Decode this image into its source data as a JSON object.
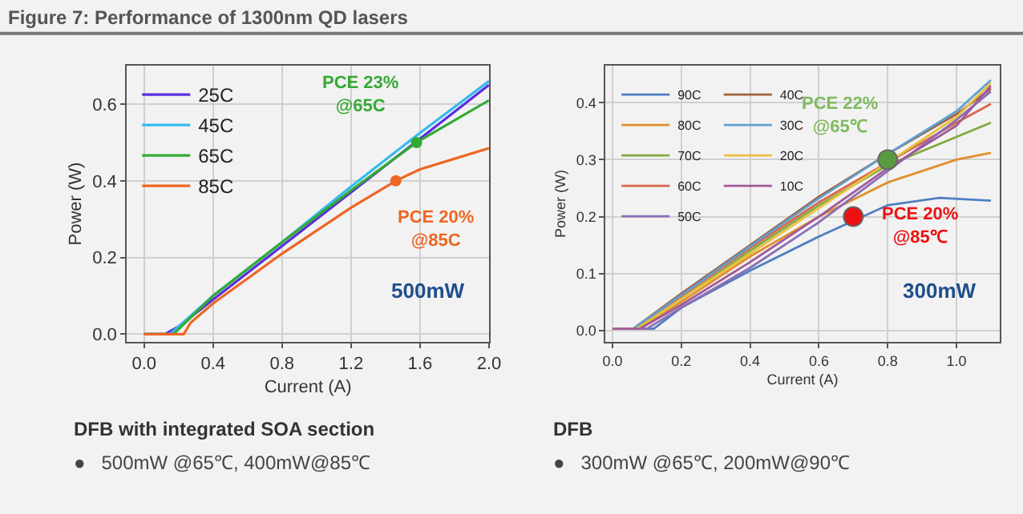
{
  "chart_data": [
    {
      "type": "line",
      "title": "Figure 7: Performance of 1300nm QD lasers",
      "xlabel": "Current (A)",
      "ylabel": "Power (W)",
      "xlim": [
        -0.1,
        2.0
      ],
      "xticks": [
        {
          "value": 0,
          "label": "0.0"
        },
        0.4,
        0.8,
        1.2,
        1.6,
        {
          "value": 2,
          "label": "2.0"
        }
      ],
      "ylim": [
        -0.02,
        0.7
      ],
      "yticks": [
        {
          "value": 0,
          "label": "0.0"
        },
        0.2,
        0.4,
        0.6
      ],
      "grid": true,
      "legend": "top left",
      "series": [
        {
          "name": "25C",
          "color": "#5a2de0",
          "x": [
            0,
            0.12,
            0.2,
            0.4,
            0.8,
            1.2,
            1.6,
            2.0
          ],
          "values": [
            0,
            0,
            0.02,
            0.09,
            0.23,
            0.37,
            0.51,
            0.65
          ]
        },
        {
          "name": "45C",
          "color": "#33bbee",
          "x": [
            0,
            0.15,
            0.4,
            0.8,
            1.2,
            1.6,
            2.0
          ],
          "values": [
            0,
            0,
            0.1,
            0.24,
            0.385,
            0.525,
            0.66
          ]
        },
        {
          "name": "65C",
          "color": "#33aa33",
          "x": [
            0,
            0.17,
            0.4,
            0.8,
            1.2,
            1.58,
            2.0
          ],
          "values": [
            0,
            0,
            0.1,
            0.24,
            0.375,
            0.5,
            0.61
          ]
        },
        {
          "name": "85C",
          "color": "#ee6622",
          "x": [
            0,
            0.23,
            0.27,
            0.4,
            0.8,
            1.2,
            1.46,
            1.6,
            2.0
          ],
          "values": [
            0,
            0,
            0.03,
            0.08,
            0.21,
            0.33,
            0.4,
            0.43,
            0.485
          ]
        },
        {
          "type": "scatter",
          "color": "#33aa33",
          "x": [
            1.58
          ],
          "values": [
            0.5
          ]
        },
        {
          "type": "scatter",
          "color": "#ee6622",
          "x": [
            1.46
          ],
          "values": [
            0.4
          ]
        }
      ],
      "annotations": [
        {
          "text": "PCE 23%\n@65C",
          "x": 1.58,
          "y": 0.5
        },
        {
          "text": "PCE 20%\n@85C",
          "x": 1.46,
          "y": 0.4
        },
        "500mW",
        "DFB with integrated SOA section",
        "●   500mW @65℃, 400mW@85℃"
      ]
    },
    {
      "type": "line",
      "xlabel": "Current (A)",
      "ylabel": "Power (W)",
      "xlim": [
        -0.02,
        1.125
      ],
      "xticks": [
        {
          "value": 0,
          "label": "0.0"
        },
        0.2,
        0.4,
        0.6,
        0.8,
        {
          "value": 1,
          "label": "1.0"
        }
      ],
      "ylim": [
        -0.02,
        0.465
      ],
      "yticks": [
        {
          "value": 0,
          "label": "0.0"
        },
        0.1,
        0.2,
        0.3,
        0.4
      ],
      "grid": true,
      "legend": "top left",
      "series": [
        {
          "name": "90C",
          "color": "#4f7fbf",
          "x": [
            0,
            0.12,
            0.2,
            0.4,
            0.6,
            0.8,
            0.95,
            1.1
          ],
          "values": [
            0.003,
            0.003,
            0.04,
            0.105,
            0.165,
            0.22,
            0.233,
            0.228
          ]
        },
        {
          "name": "80C",
          "color": "#e0902a",
          "x": [
            0,
            0.08,
            0.2,
            0.4,
            0.6,
            0.8,
            1.0,
            1.1
          ],
          "values": [
            0.003,
            0.003,
            0.05,
            0.13,
            0.2,
            0.26,
            0.3,
            0.312
          ]
        },
        {
          "name": "70C",
          "color": "#80aa40",
          "x": [
            0,
            0.07,
            0.2,
            0.4,
            0.6,
            0.8,
            1.0,
            1.1
          ],
          "values": [
            0.003,
            0.003,
            0.055,
            0.14,
            0.22,
            0.29,
            0.34,
            0.365
          ]
        },
        {
          "name": "60C",
          "color": "#d9664a",
          "x": [
            0,
            0.06,
            0.2,
            0.4,
            0.6,
            1.0,
            1.1
          ],
          "values": [
            0.003,
            0.003,
            0.06,
            0.145,
            0.225,
            0.365,
            0.398
          ]
        },
        {
          "name": "50C",
          "color": "#8a6fb5",
          "x": [
            0,
            0.1,
            0.2,
            0.4,
            0.6,
            0.8,
            1.0,
            1.1
          ],
          "values": [
            0.003,
            0.003,
            0.04,
            0.11,
            0.19,
            0.28,
            0.37,
            0.42
          ]
        },
        {
          "name": "40C",
          "color": "#a0603a",
          "x": [
            0,
            0.06,
            0.2,
            0.4,
            0.6,
            0.8,
            1.0,
            1.1
          ],
          "values": [
            0.003,
            0.003,
            0.065,
            0.15,
            0.235,
            0.31,
            0.38,
            0.425
          ]
        },
        {
          "name": "30C",
          "color": "#5fa0d0",
          "x": [
            0,
            0.06,
            0.2,
            0.4,
            0.6,
            0.8,
            1.0,
            1.1
          ],
          "values": [
            0.003,
            0.003,
            0.062,
            0.148,
            0.232,
            0.31,
            0.385,
            0.44
          ]
        },
        {
          "name": "20C",
          "color": "#e8c040",
          "x": [
            0,
            0.07,
            0.2,
            0.4,
            0.6,
            1.0,
            1.1
          ],
          "values": [
            0.003,
            0.003,
            0.055,
            0.135,
            0.215,
            0.375,
            0.435
          ]
        },
        {
          "name": "10C",
          "color": "#a05a9a",
          "x": [
            0,
            0.08,
            0.2,
            0.4,
            0.6,
            0.8,
            1.0,
            1.1
          ],
          "values": [
            0.003,
            0.003,
            0.045,
            0.12,
            0.2,
            0.285,
            0.36,
            0.43
          ]
        },
        {
          "type": "scatter",
          "color": "#5a9a40",
          "x": [
            0.8
          ],
          "values": [
            0.3
          ]
        },
        {
          "type": "scatter",
          "color": "#ee1111",
          "x": [
            0.7
          ],
          "values": [
            0.2
          ]
        }
      ],
      "annotations": [
        {
          "text": "PCE 22%\n@65℃",
          "x": 0.8,
          "y": 0.3
        },
        {
          "text": "PCE 20%\n@85℃",
          "x": 0.7,
          "y": 0.2
        },
        "300mW",
        "DFB",
        "●   300mW @65℃, 200mW@90℃"
      ]
    }
  ]
}
